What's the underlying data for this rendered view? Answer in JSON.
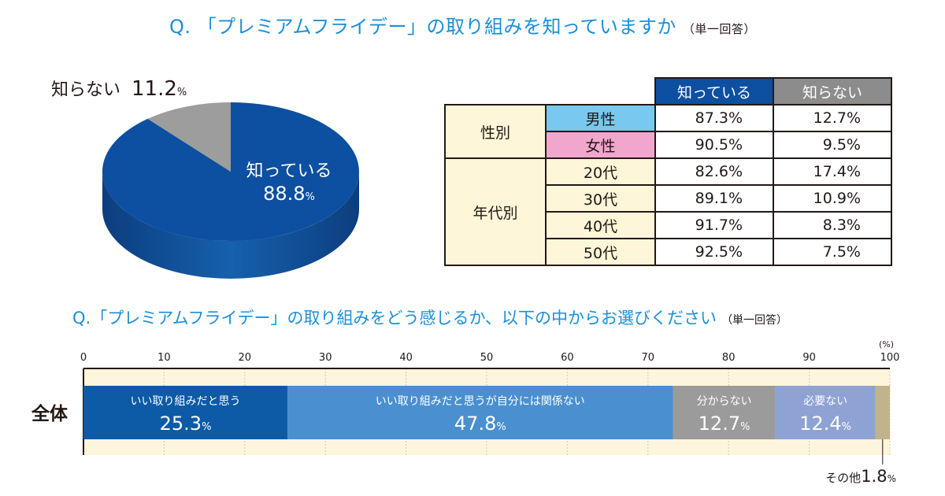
{
  "q1": {
    "title": "Q. 「プレミアムフライデー」の取り組みを知っていますか",
    "note": "（単一回答）"
  },
  "pie": {
    "know_label": "知っている",
    "know_value": "88.8",
    "unknown_label": "知らない",
    "unknown_value": "11.2",
    "pct": "%",
    "colors": {
      "know": "#0d4fa0",
      "unknown": "#9d9d9d"
    }
  },
  "crosstab": {
    "headers": [
      "知っている",
      "知らない"
    ],
    "group_gender": "性別",
    "group_age": "年代別",
    "rows": [
      {
        "label": "男性",
        "know": "87.3%",
        "unknown": "12.7%"
      },
      {
        "label": "女性",
        "know": "90.5%",
        "unknown": "9.5%"
      },
      {
        "label": "20代",
        "know": "82.6%",
        "unknown": "17.4%"
      },
      {
        "label": "30代",
        "know": "89.1%",
        "unknown": "10.9%"
      },
      {
        "label": "40代",
        "know": "91.7%",
        "unknown": "8.3%"
      },
      {
        "label": "50代",
        "know": "92.5%",
        "unknown": "7.5%"
      }
    ]
  },
  "q2": {
    "title": "Q.「プレミアムフライデー」の取り組みをどう感じるか、以下の中からお選びください",
    "note": "（単一回答）"
  },
  "chart_data": [
    {
      "type": "pie",
      "slices": [
        {
          "label": "知っている",
          "value": 88.8,
          "color": "#0d4fa0"
        },
        {
          "label": "知らない",
          "value": 11.2,
          "color": "#9d9d9d"
        }
      ]
    },
    {
      "type": "table",
      "columns": [
        "知っている",
        "知らない"
      ],
      "groups": [
        {
          "name": "性別",
          "rows": [
            "男性",
            "女性"
          ]
        },
        {
          "name": "年代別",
          "rows": [
            "20代",
            "30代",
            "40代",
            "50代"
          ]
        }
      ],
      "rows": [
        {
          "label": "男性",
          "values": [
            87.3,
            12.7
          ]
        },
        {
          "label": "女性",
          "values": [
            90.5,
            9.5
          ]
        },
        {
          "label": "20代",
          "values": [
            82.6,
            17.4
          ]
        },
        {
          "label": "30代",
          "values": [
            89.1,
            10.9
          ]
        },
        {
          "label": "40代",
          "values": [
            91.7,
            8.3
          ]
        },
        {
          "label": "50代",
          "values": [
            92.5,
            7.5
          ]
        }
      ]
    },
    {
      "type": "bar",
      "orientation": "horizontal-stacked",
      "categories": [
        "全体"
      ],
      "xlim": [
        0,
        100
      ],
      "xticks": [
        0,
        10,
        20,
        30,
        40,
        50,
        60,
        70,
        80,
        90,
        100
      ],
      "unit": "(%)",
      "series": [
        {
          "name": "いい取り組みだと思う",
          "values": [
            25.3
          ],
          "color": "#0d5aa7",
          "text_color": "#ffffff"
        },
        {
          "name": "いい取り組みだと思うが自分には関係ない",
          "values": [
            47.8
          ],
          "color": "#4a8fd0",
          "text_color": "#ffffff"
        },
        {
          "name": "分からない",
          "values": [
            12.7
          ],
          "color": "#9b9b9b",
          "text_color": "#ffffff"
        },
        {
          "name": "必要ない",
          "values": [
            12.4
          ],
          "color": "#8fa2d4",
          "text_color": "#ffffff"
        },
        {
          "name": "その他",
          "values": [
            1.8
          ],
          "color": "#c2b48a",
          "text_color": "#231815"
        }
      ]
    }
  ]
}
